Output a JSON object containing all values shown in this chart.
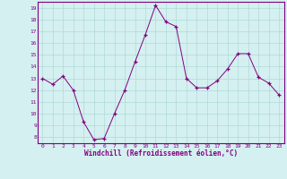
{
  "x": [
    0,
    1,
    2,
    3,
    4,
    5,
    6,
    7,
    8,
    9,
    10,
    11,
    12,
    13,
    14,
    15,
    16,
    17,
    18,
    19,
    20,
    21,
    22,
    23
  ],
  "y": [
    13,
    12.5,
    13.2,
    12.0,
    9.3,
    7.8,
    7.9,
    10.0,
    12.0,
    14.4,
    16.7,
    19.2,
    17.8,
    17.4,
    13.0,
    12.2,
    12.2,
    12.8,
    13.8,
    15.1,
    15.1,
    13.1,
    12.6,
    11.6
  ],
  "line_color": "#800080",
  "marker": "+",
  "marker_color": "#800080",
  "bg_color": "#d5f0f0",
  "grid_color": "#b0d8d8",
  "axis_label_color": "#800080",
  "tick_color": "#800080",
  "xlabel": "Windchill (Refroidissement éolien,°C)",
  "xlim": [
    -0.5,
    23.5
  ],
  "ylim": [
    7.5,
    19.5
  ],
  "yticks": [
    8,
    9,
    10,
    11,
    12,
    13,
    14,
    15,
    16,
    17,
    18,
    19
  ],
  "xticks": [
    0,
    1,
    2,
    3,
    4,
    5,
    6,
    7,
    8,
    9,
    10,
    11,
    12,
    13,
    14,
    15,
    16,
    17,
    18,
    19,
    20,
    21,
    22,
    23
  ],
  "border_color": "#800080",
  "spine_color": "#800080"
}
